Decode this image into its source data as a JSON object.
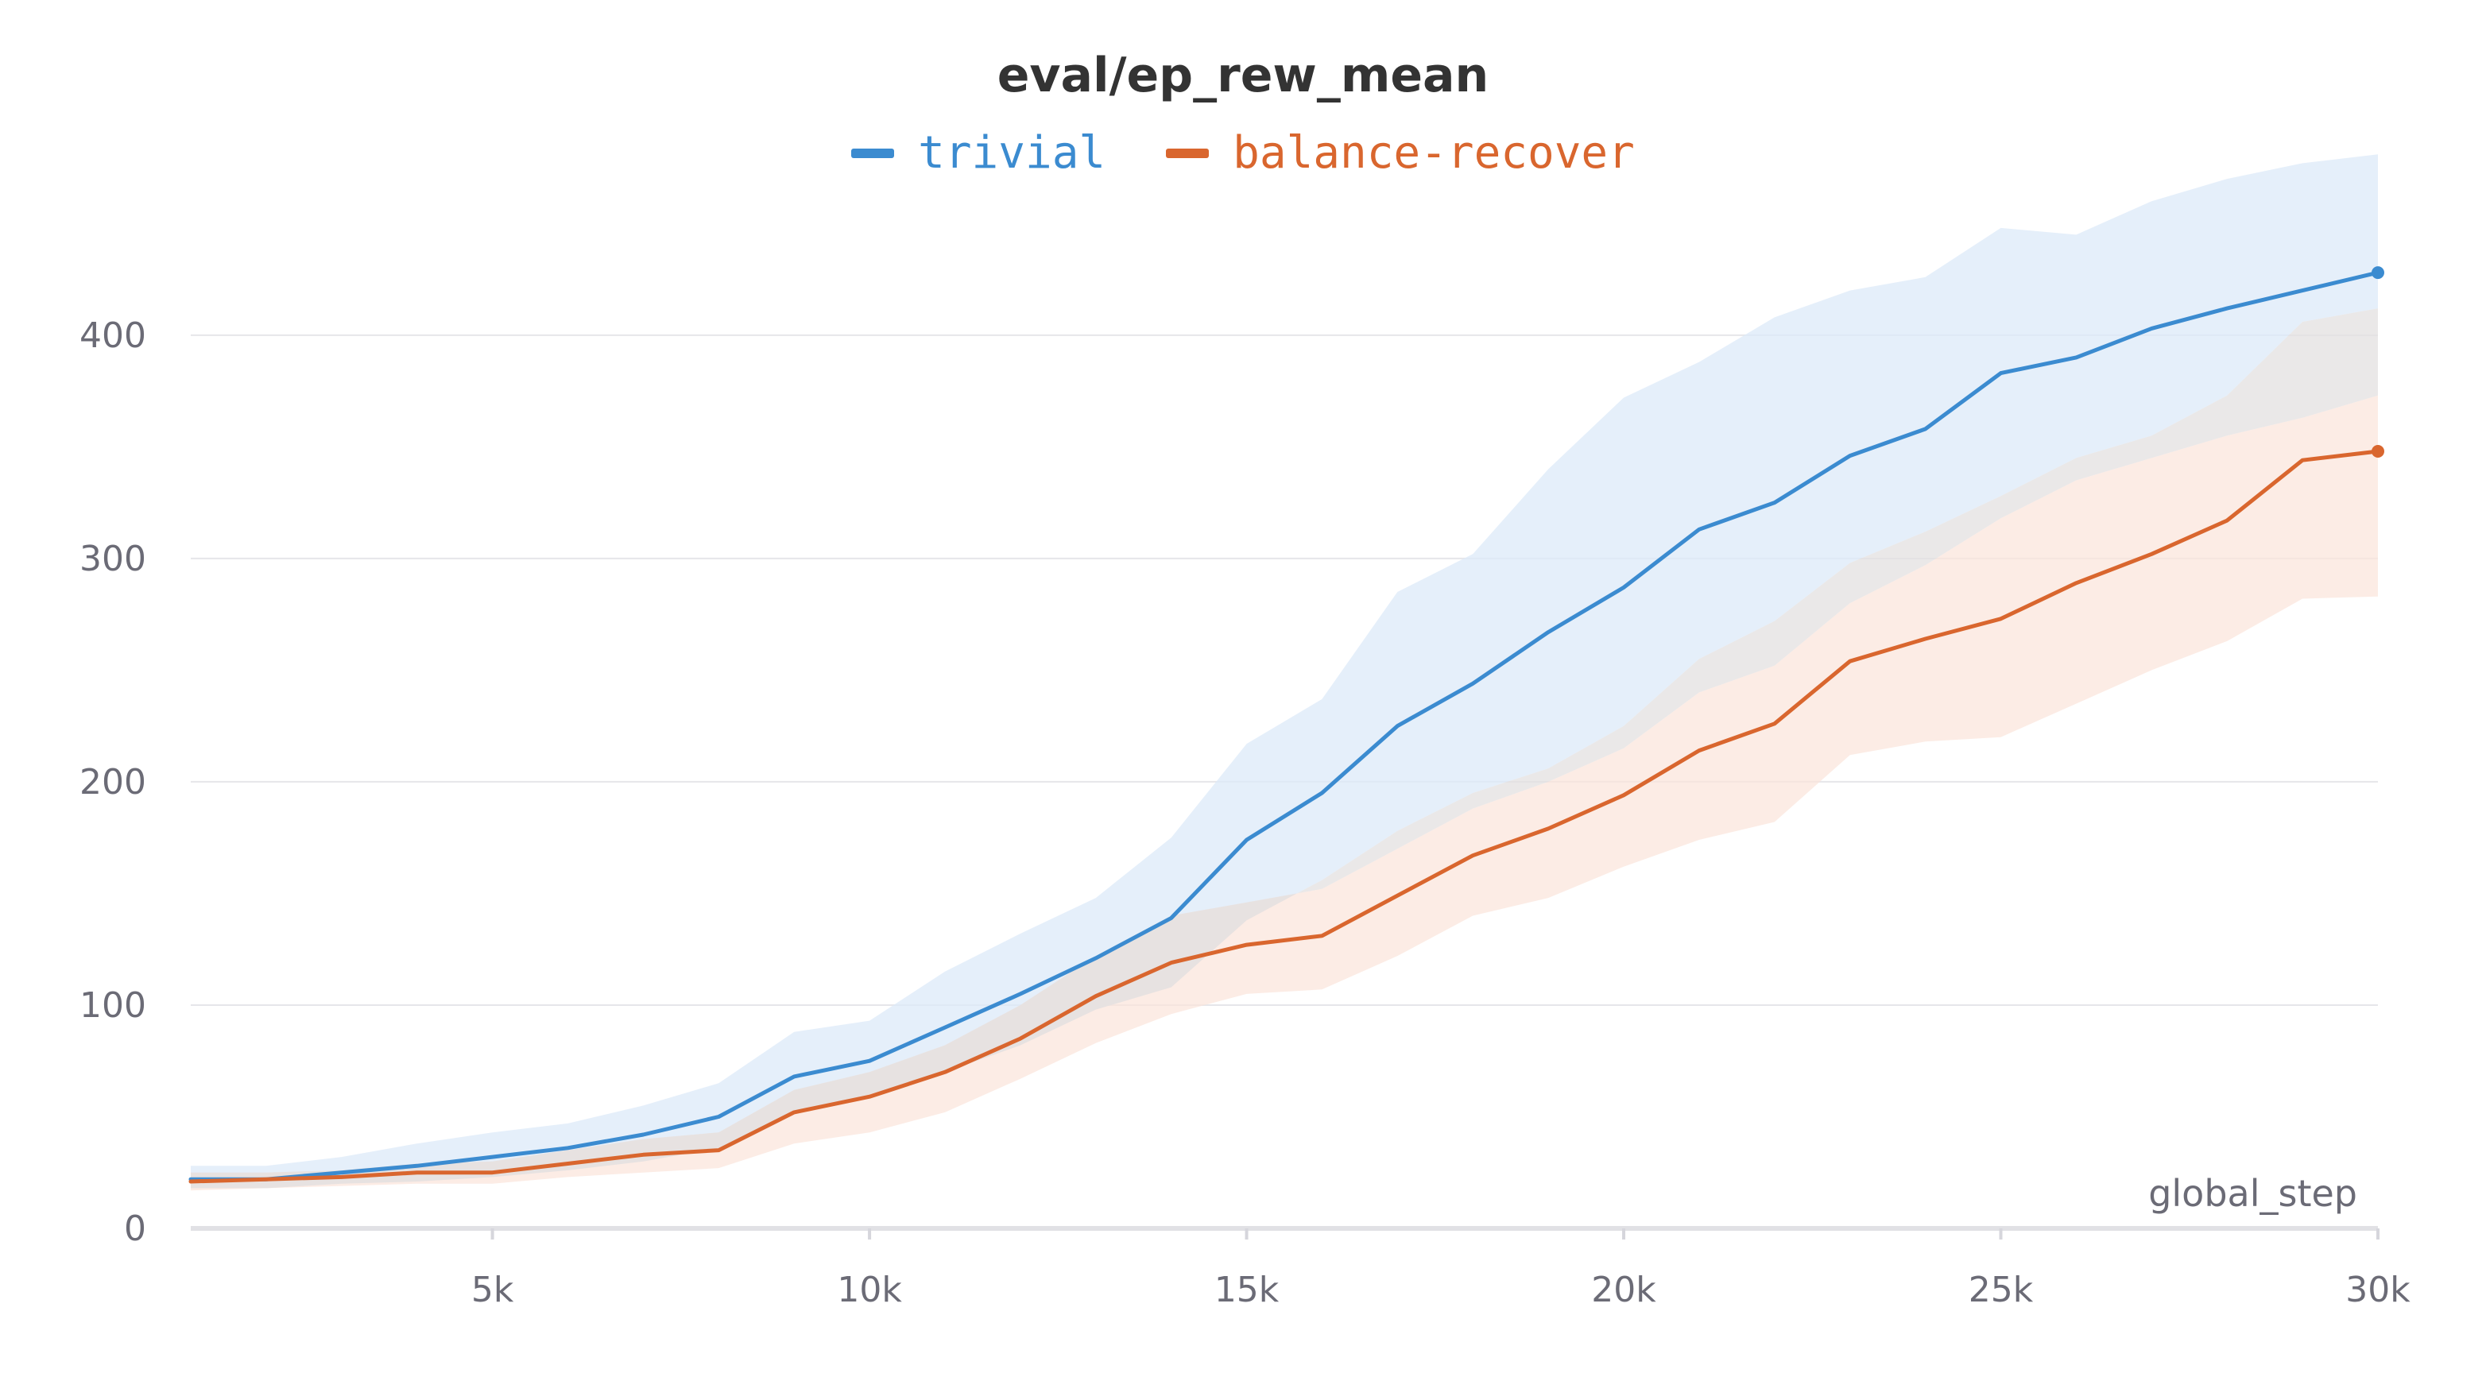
{
  "chart_data": {
    "type": "line",
    "title": "eval/ep_rew_mean",
    "xlabel": "global_step",
    "ylabel": "",
    "xlim": [
      1000,
      30000
    ],
    "ylim": [
      0,
      480
    ],
    "x_ticks": [
      5000,
      10000,
      15000,
      20000,
      25000,
      30000
    ],
    "x_tick_labels": [
      "5k",
      "10k",
      "15k",
      "20k",
      "25k",
      "30k"
    ],
    "y_ticks": [
      0,
      100,
      200,
      300,
      400
    ],
    "y_tick_labels": [
      "0",
      "100",
      "200",
      "300",
      "400"
    ],
    "grid": "horizontal",
    "legend_position": "top-center",
    "x": [
      1000,
      2000,
      3000,
      4000,
      5000,
      6000,
      7000,
      8000,
      9000,
      10000,
      11000,
      12000,
      13000,
      14000,
      15000,
      16000,
      17000,
      18000,
      19000,
      20000,
      21000,
      22000,
      23000,
      24000,
      25000,
      26000,
      27000,
      28000,
      29000,
      30000
    ],
    "series": [
      {
        "name": "trivial",
        "color": "#3b8bd0",
        "band_color": "#dce9f8",
        "values": [
          22,
          22,
          25,
          28,
          32,
          36,
          42,
          50,
          68,
          75,
          90,
          105,
          121,
          139,
          174,
          195,
          225,
          244,
          267,
          287,
          313,
          325,
          346,
          358,
          383,
          390,
          403,
          412,
          420,
          428
        ],
        "upper": [
          28,
          28,
          32,
          38,
          43,
          47,
          55,
          65,
          88,
          93,
          115,
          132,
          148,
          175,
          217,
          237,
          285,
          302,
          340,
          372,
          388,
          408,
          420,
          426,
          448,
          445,
          460,
          470,
          477,
          481
        ],
        "lower": [
          18,
          18,
          20,
          21,
          23,
          26,
          30,
          36,
          52,
          60,
          70,
          82,
          98,
          108,
          138,
          156,
          178,
          195,
          206,
          225,
          255,
          272,
          298,
          312,
          328,
          345,
          355,
          373,
          406,
          412
        ]
      },
      {
        "name": "balance-recover",
        "color": "#d9662e",
        "band_color": "#fbe4da",
        "values": [
          21,
          22,
          23,
          25,
          25,
          29,
          33,
          35,
          52,
          59,
          70,
          85,
          104,
          119,
          127,
          131,
          149,
          167,
          179,
          194,
          214,
          226,
          254,
          264,
          273,
          289,
          302,
          317,
          344,
          348
        ],
        "upper": [
          25,
          25,
          26,
          29,
          30,
          35,
          40,
          43,
          62,
          70,
          82,
          100,
          122,
          140,
          146,
          152,
          170,
          188,
          200,
          215,
          240,
          252,
          280,
          297,
          318,
          335,
          345,
          355,
          363,
          373
        ],
        "lower": [
          17,
          18,
          19,
          20,
          20,
          23,
          25,
          27,
          38,
          43,
          52,
          67,
          83,
          96,
          105,
          107,
          122,
          140,
          148,
          162,
          174,
          182,
          212,
          218,
          220,
          235,
          250,
          263,
          282,
          283
        ]
      }
    ]
  }
}
